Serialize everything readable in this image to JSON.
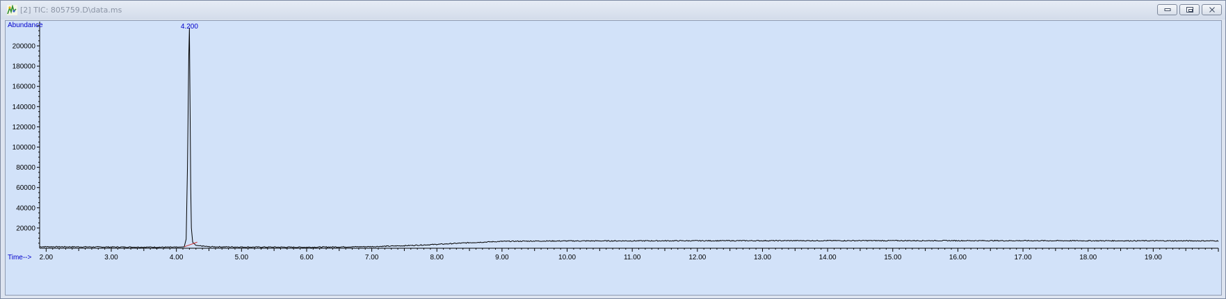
{
  "window": {
    "title": "[2] TIC: 805759.D\\data.ms",
    "controls": {
      "minimize": "minimize",
      "restore": "restore",
      "close": "close"
    }
  },
  "colors": {
    "background": "#d2e2f9",
    "trace": "#000000",
    "peak_label": "#0000cc",
    "baseline_marker": "#cc3333"
  },
  "chart_data": {
    "type": "line",
    "title": "",
    "xlabel": "Time-->",
    "ylabel": "Abundance",
    "xlim": [
      1.9,
      20.0
    ],
    "ylim": [
      0,
      222000
    ],
    "x_ticks": [
      2.0,
      3.0,
      4.0,
      5.0,
      6.0,
      7.0,
      8.0,
      9.0,
      10.0,
      11.0,
      12.0,
      13.0,
      14.0,
      15.0,
      16.0,
      17.0,
      18.0,
      19.0
    ],
    "x_tick_labels": [
      "2.00",
      "3.00",
      "4.00",
      "5.00",
      "6.00",
      "7.00",
      "8.00",
      "9.00",
      "10.00",
      "11.00",
      "12.00",
      "13.00",
      "14.00",
      "15.00",
      "16.00",
      "17.00",
      "18.00",
      "19.00"
    ],
    "y_ticks": [
      20000,
      40000,
      60000,
      80000,
      100000,
      120000,
      140000,
      160000,
      180000,
      200000
    ],
    "y_tick_labels": [
      "20000",
      "40000",
      "60000",
      "80000",
      "100000",
      "120000",
      "140000",
      "160000",
      "180000",
      "200000"
    ],
    "series": [
      {
        "x": [
          1.9,
          2.0,
          3.0,
          4.0,
          4.12,
          4.15,
          4.17,
          4.19,
          4.2,
          4.21,
          4.22,
          4.23,
          4.25,
          4.3,
          4.5,
          5.0,
          6.0,
          7.0,
          7.5,
          8.0,
          8.5,
          9.0,
          9.5,
          10.0,
          12.0,
          14.0,
          16.0,
          18.0,
          20.0
        ],
        "y": [
          1500,
          1500,
          1200,
          1000,
          1400,
          9000,
          80000,
          190000,
          218000,
          140000,
          60000,
          20000,
          6000,
          2800,
          1500,
          1200,
          1000,
          1600,
          2500,
          3800,
          5500,
          6800,
          7100,
          7200,
          7400,
          7500,
          7500,
          7400,
          7300
        ]
      }
    ],
    "annotations": [
      {
        "x": 4.2,
        "text": "4.200"
      }
    ],
    "grid": false,
    "legend": "none"
  }
}
